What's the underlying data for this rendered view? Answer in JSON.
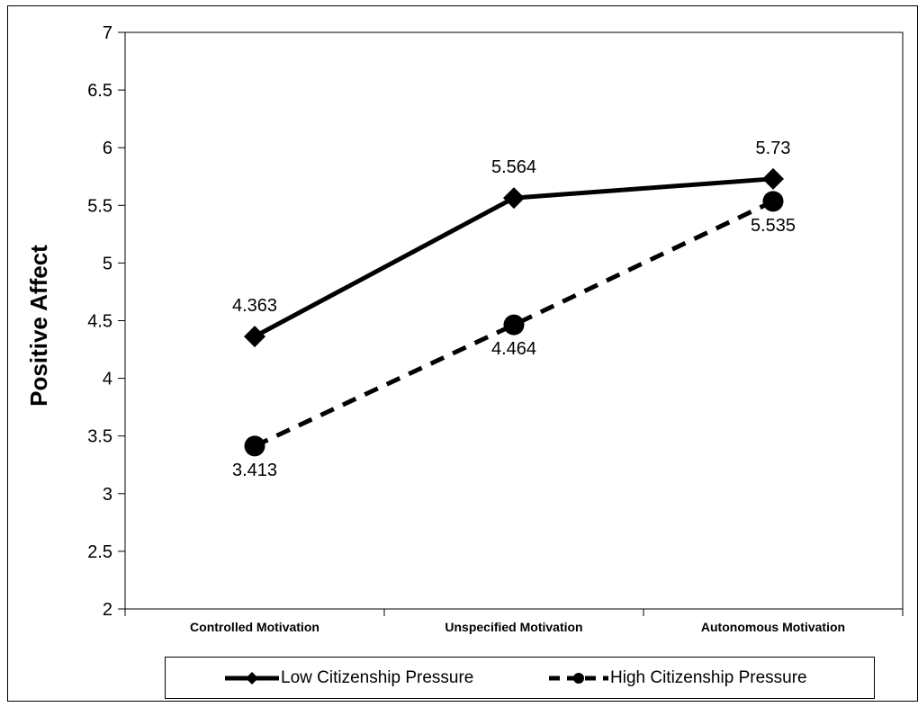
{
  "chart_data": {
    "type": "line",
    "categories": [
      "Controlled Motivation",
      "Unspecified Motivation",
      "Autonomous Motivation"
    ],
    "series": [
      {
        "name": "Low Citizenship Pressure",
        "values": [
          4.363,
          5.564,
          5.73
        ],
        "labels": [
          "4.363",
          "5.564",
          "5.73"
        ],
        "style": "solid",
        "marker": "diamond",
        "color": "#000000"
      },
      {
        "name": "High Citizenship Pressure",
        "values": [
          3.413,
          4.464,
          5.535
        ],
        "labels": [
          "3.413",
          "4.464",
          "5.535"
        ],
        "style": "dashed",
        "marker": "circle",
        "color": "#000000"
      }
    ],
    "ylabel": "Positive Affect",
    "xlabel": "",
    "ylim": [
      2,
      7
    ],
    "yticks": [
      "2",
      "2.5",
      "3",
      "3.5",
      "4",
      "4.5",
      "5",
      "5.5",
      "6",
      "6.5",
      "7"
    ],
    "grid": false,
    "legend": "bottom"
  }
}
